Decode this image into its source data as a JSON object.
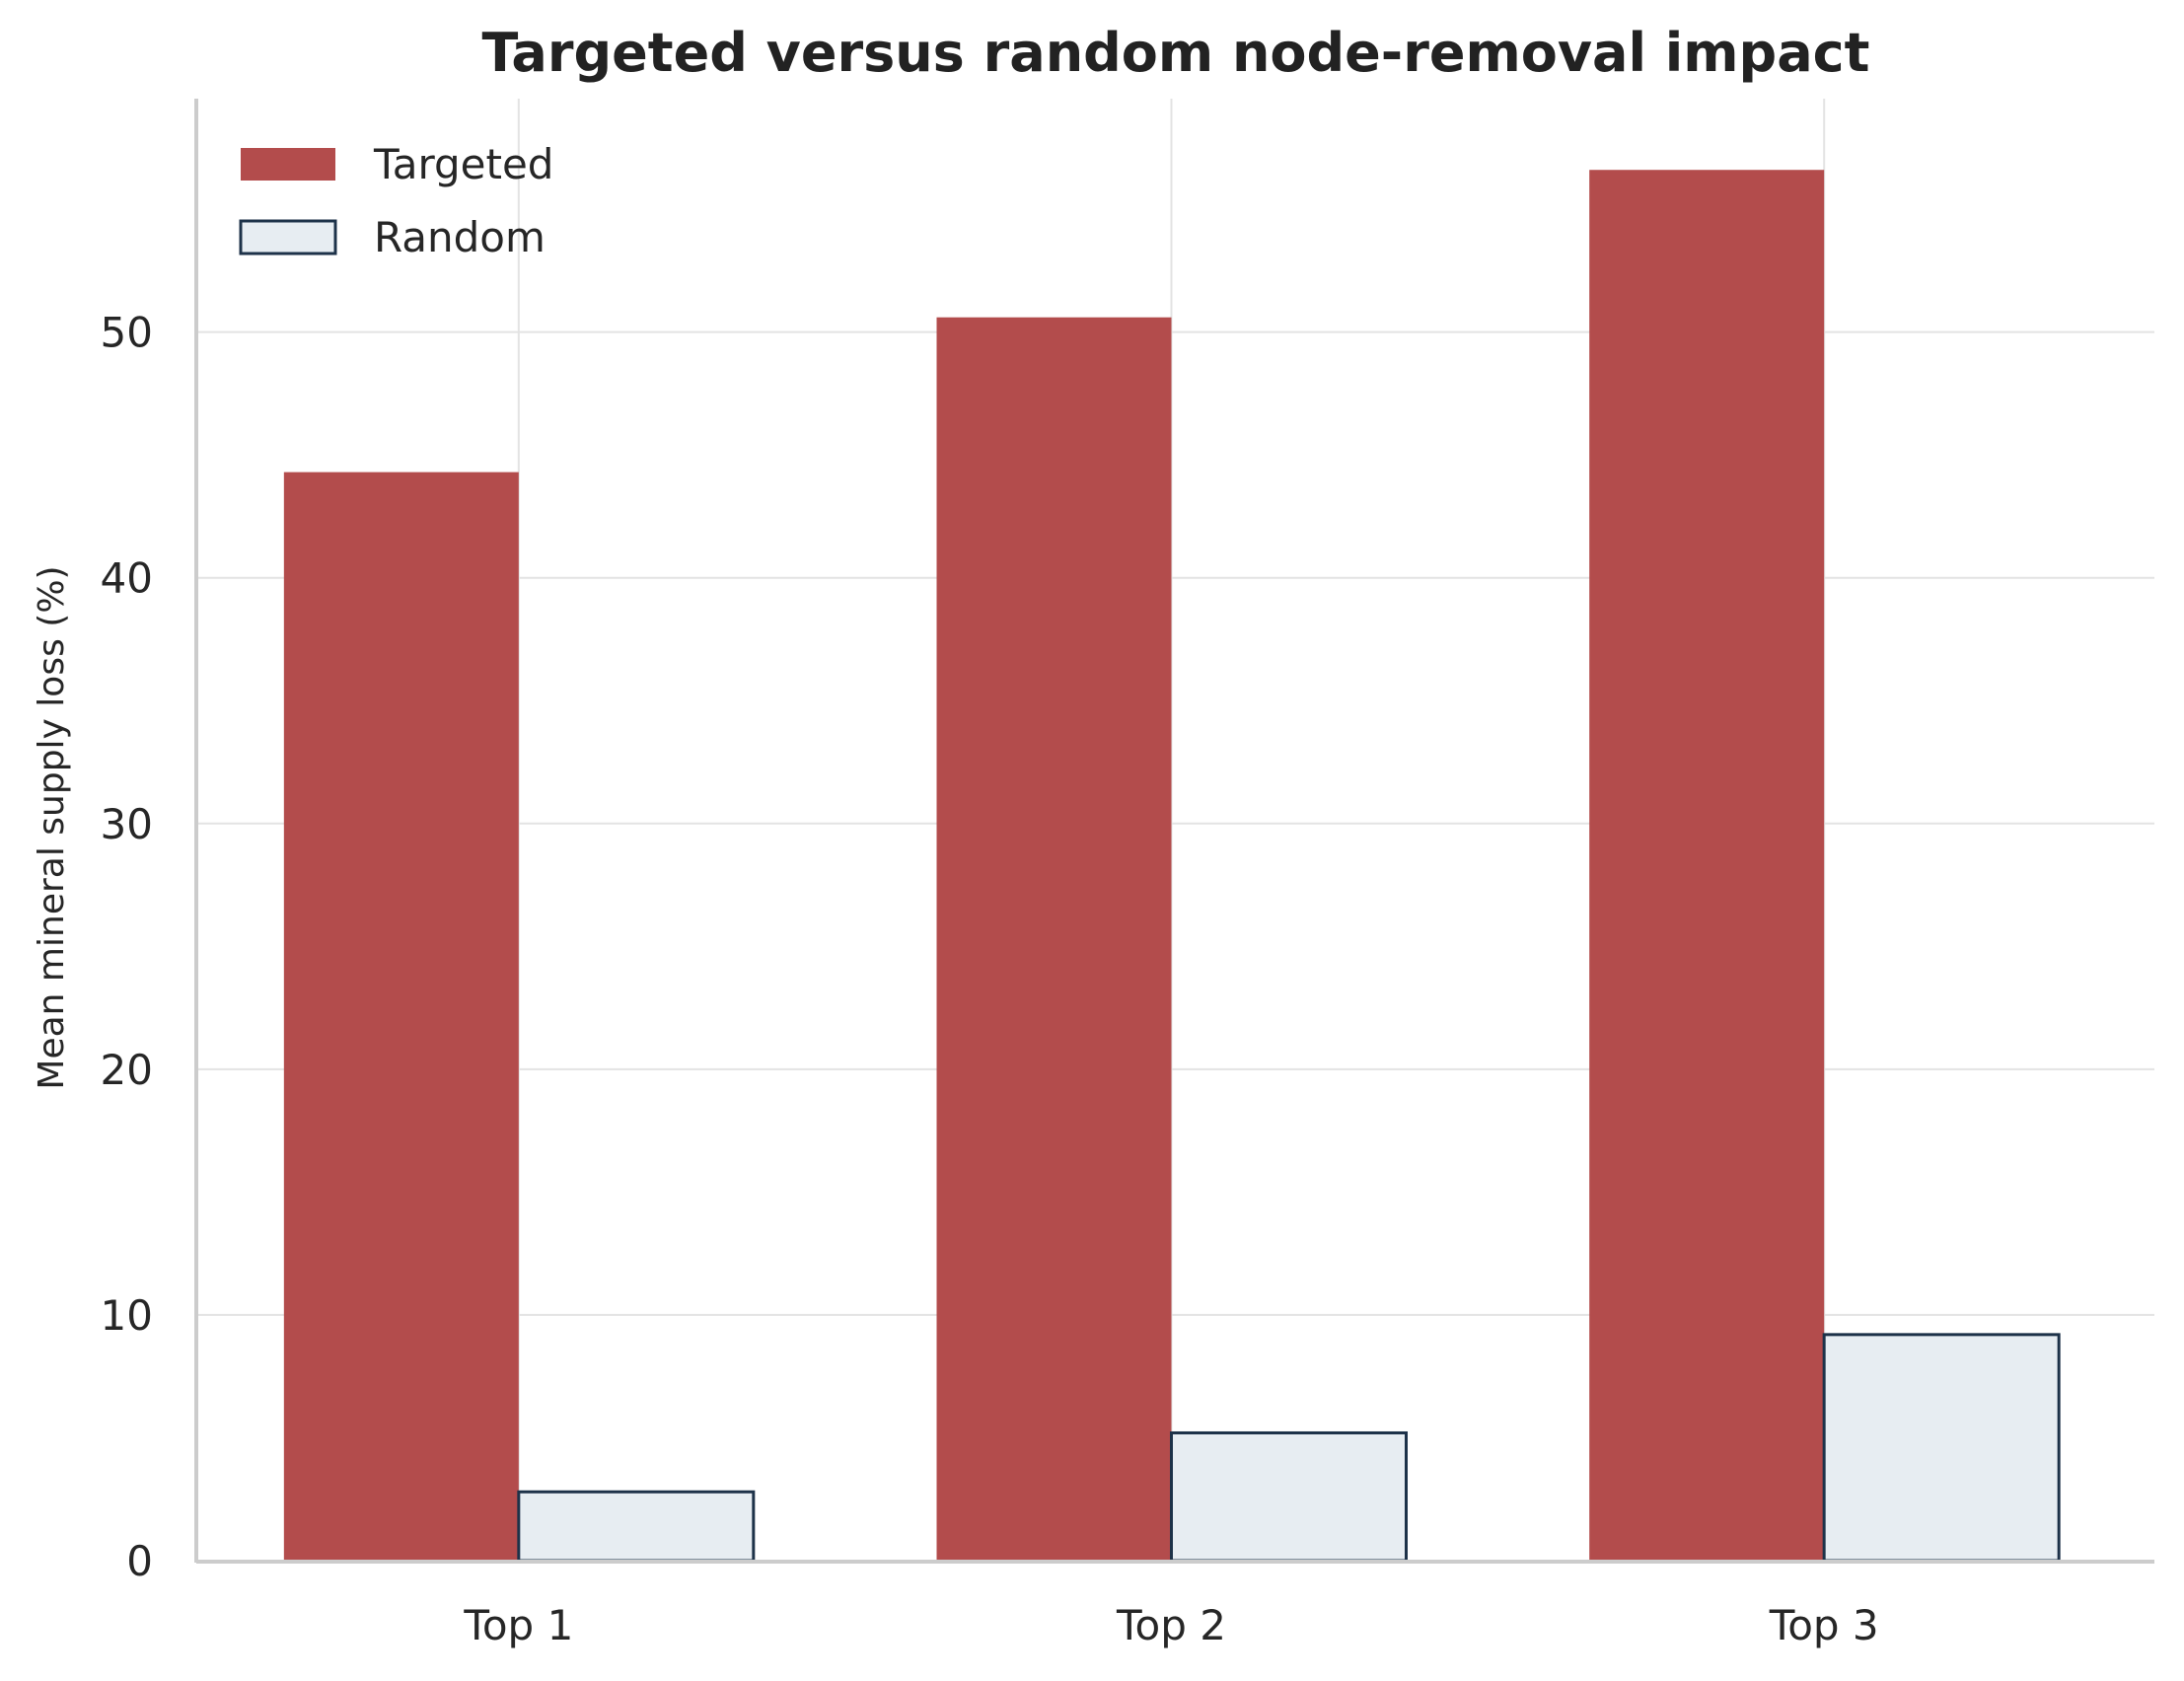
{
  "chart_data": {
    "type": "bar",
    "title": "Targeted versus random node-removal impact",
    "xlabel": "",
    "ylabel": "Mean mineral supply loss (%)",
    "categories": [
      "Top 1",
      "Top 2",
      "Top 3"
    ],
    "series": [
      {
        "name": "Targeted",
        "values": [
          44.3,
          50.6,
          56.6
        ],
        "color": "#b34c4c",
        "edge": "none"
      },
      {
        "name": "Random",
        "values": [
          2.8,
          5.2,
          9.2
        ],
        "color": "#e7edf2",
        "edge": "#1d3249"
      }
    ],
    "ylim": [
      0,
      59.5
    ],
    "yticks": [
      0,
      10,
      20,
      30,
      40,
      50
    ],
    "grid": true,
    "legend": "top-left"
  }
}
